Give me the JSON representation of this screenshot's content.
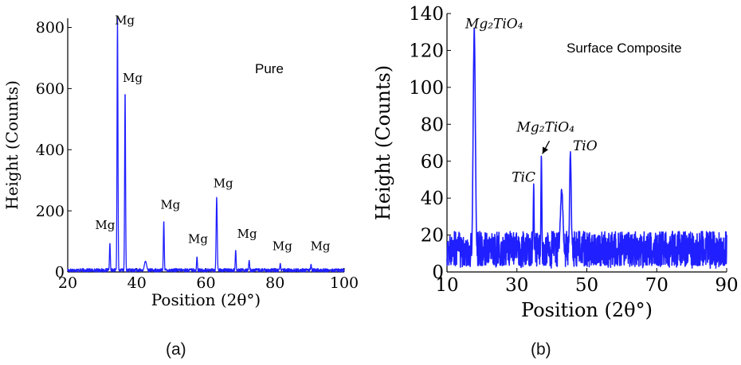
{
  "figure": {
    "captions": [
      "(a)",
      "(b)"
    ]
  },
  "chart_data": [
    {
      "type": "line",
      "panel": "(a)",
      "inset_label": "Pure",
      "xlabel": "Position (2θ°)",
      "ylabel": "Height (Counts)",
      "xlim": [
        20,
        100
      ],
      "ylim": [
        0,
        830
      ],
      "xticks": [
        20,
        40,
        60,
        80,
        100
      ],
      "yticks": [
        0,
        200,
        400,
        600,
        800
      ],
      "color": "#1f1fff",
      "grid": false,
      "baseline": [
        0,
        14
      ],
      "peaks": [
        {
          "x": 32.2,
          "y": 95,
          "w": 0.18
        },
        {
          "x": 34.4,
          "y": 830,
          "w": 0.18
        },
        {
          "x": 36.6,
          "y": 595,
          "w": 0.18
        },
        {
          "x": 42.5,
          "y": 35,
          "w": 0.5
        },
        {
          "x": 47.8,
          "y": 168,
          "w": 0.18
        },
        {
          "x": 57.4,
          "y": 50,
          "w": 0.18
        },
        {
          "x": 63.1,
          "y": 245,
          "w": 0.22
        },
        {
          "x": 68.6,
          "y": 72,
          "w": 0.18
        },
        {
          "x": 72.5,
          "y": 38,
          "w": 0.2
        },
        {
          "x": 81.5,
          "y": 28,
          "w": 0.2
        },
        {
          "x": 90.4,
          "y": 25,
          "w": 0.2
        }
      ],
      "annotations": [
        {
          "text": "Mg",
          "x": 30.8,
          "y": 140
        },
        {
          "text": "Mg",
          "x": 36.5,
          "y": 810
        },
        {
          "text": "Mg",
          "x": 38.8,
          "y": 622
        },
        {
          "text": "Mg",
          "x": 49.7,
          "y": 207
        },
        {
          "text": "Mg",
          "x": 57.7,
          "y": 95
        },
        {
          "text": "Mg",
          "x": 65.0,
          "y": 277
        },
        {
          "text": "Mg",
          "x": 71.9,
          "y": 112
        },
        {
          "text": "Mg",
          "x": 82.1,
          "y": 72
        },
        {
          "text": "Mg",
          "x": 93.1,
          "y": 72
        }
      ]
    },
    {
      "type": "line",
      "panel": "(b)",
      "inset_label": "Surface Composite",
      "xlabel": "Position (2θ°)",
      "ylabel": "Height (Counts)",
      "xlim": [
        10,
        90
      ],
      "ylim": [
        0,
        140
      ],
      "xticks": [
        10,
        30,
        50,
        70,
        90
      ],
      "yticks": [
        0,
        20,
        40,
        60,
        80,
        100,
        120,
        140
      ],
      "color": "#1f1fff",
      "grid": false,
      "baseline": [
        2,
        22
      ],
      "peaks": [
        {
          "x": 17.8,
          "y": 129,
          "w": 0.45
        },
        {
          "x": 34.8,
          "y": 46,
          "w": 0.18
        },
        {
          "x": 37.0,
          "y": 62,
          "w": 0.2
        },
        {
          "x": 42.8,
          "y": 42,
          "w": 0.6
        },
        {
          "x": 45.3,
          "y": 63,
          "w": 0.35
        }
      ],
      "annotations": [
        {
          "text": "Mg₂TiO₄",
          "x": 23.5,
          "y": 132,
          "italic": true
        },
        {
          "text": "Mg₂TiO₄",
          "x": 38.2,
          "y": 76,
          "italic": true
        },
        {
          "text": "TiC",
          "x": 31.9,
          "y": 49,
          "italic": true
        },
        {
          "text": "TiO",
          "x": 49.5,
          "y": 66,
          "italic": true
        }
      ],
      "arrow": {
        "from": [
          39.3,
          71
        ],
        "to": [
          37.3,
          64
        ]
      }
    }
  ]
}
